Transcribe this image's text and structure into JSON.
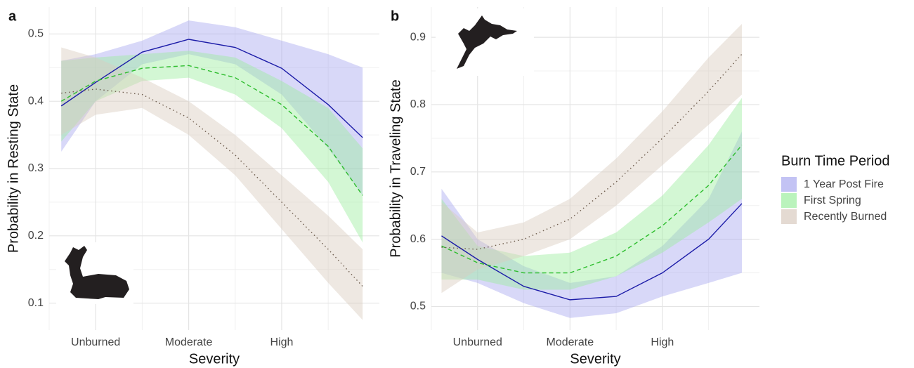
{
  "chart_data": [
    {
      "type": "line",
      "label": "a",
      "xlabel": "Severity",
      "ylabel": "Probability in Resting State",
      "xlim": [
        0.5,
        4.05
      ],
      "ylim": [
        0.06,
        0.54
      ],
      "xticks": [
        {
          "value": 1,
          "label": "Unburned"
        },
        {
          "value": 2,
          "label": "Moderate"
        },
        {
          "value": 3,
          "label": "High"
        }
      ],
      "yticks": [
        0.1,
        0.2,
        0.3,
        0.4,
        0.5
      ],
      "grid": true,
      "legend": {
        "title": "Burn Time Period",
        "position": "right"
      },
      "series": [
        {
          "name": "1 Year Post Fire",
          "color": "#1c1ca8",
          "band_color": "#a9a9f0",
          "linestyle": "solid",
          "x": [
            0.63,
            1,
            1.5,
            2,
            2.5,
            3,
            3.5,
            3.87
          ],
          "values": [
            0.393,
            0.428,
            0.473,
            0.492,
            0.48,
            0.449,
            0.395,
            0.346
          ],
          "lower": [
            0.325,
            0.4,
            0.455,
            0.47,
            0.455,
            0.41,
            0.33,
            0.26
          ],
          "upper": [
            0.46,
            0.47,
            0.49,
            0.52,
            0.51,
            0.49,
            0.47,
            0.45
          ]
        },
        {
          "name": "First Spring",
          "color": "#2dbd2d",
          "band_color": "#9deea0",
          "linestyle": "dashed",
          "x": [
            0.63,
            1,
            1.5,
            2,
            2.5,
            3,
            3.5,
            3.87
          ],
          "values": [
            0.4,
            0.43,
            0.449,
            0.453,
            0.435,
            0.395,
            0.333,
            0.26
          ],
          "lower": [
            0.34,
            0.4,
            0.43,
            0.435,
            0.41,
            0.36,
            0.28,
            0.19
          ],
          "upper": [
            0.46,
            0.465,
            0.47,
            0.475,
            0.465,
            0.43,
            0.39,
            0.33
          ]
        },
        {
          "name": "Recently Burned",
          "color": "#6e5d4e",
          "band_color": "#d9cbbf",
          "linestyle": "dotted",
          "x": [
            0.63,
            1,
            1.5,
            2,
            2.5,
            3,
            3.5,
            3.87
          ],
          "values": [
            0.412,
            0.418,
            0.41,
            0.375,
            0.32,
            0.25,
            0.18,
            0.125
          ],
          "lower": [
            0.35,
            0.38,
            0.39,
            0.35,
            0.29,
            0.21,
            0.13,
            0.075
          ],
          "upper": [
            0.48,
            0.465,
            0.435,
            0.4,
            0.35,
            0.29,
            0.23,
            0.18
          ]
        }
      ]
    },
    {
      "type": "line",
      "label": "b",
      "xlabel": "Severity",
      "ylabel": "Probability in Traveling State",
      "xlim": [
        0.5,
        4.05
      ],
      "ylim": [
        0.465,
        0.945
      ],
      "xticks": [
        {
          "value": 1,
          "label": "Unburned"
        },
        {
          "value": 2,
          "label": "Moderate"
        },
        {
          "value": 3,
          "label": "High"
        }
      ],
      "yticks": [
        0.5,
        0.6,
        0.7,
        0.8,
        0.9
      ],
      "grid": true,
      "series": [
        {
          "name": "1 Year Post Fire",
          "color": "#1c1ca8",
          "band_color": "#a9a9f0",
          "linestyle": "solid",
          "x": [
            0.61,
            1,
            1.5,
            2,
            2.5,
            3,
            3.5,
            3.86
          ],
          "values": [
            0.605,
            0.57,
            0.53,
            0.51,
            0.515,
            0.55,
            0.6,
            0.653
          ],
          "lower": [
            0.55,
            0.535,
            0.505,
            0.483,
            0.49,
            0.515,
            0.535,
            0.55
          ],
          "upper": [
            0.675,
            0.6,
            0.56,
            0.535,
            0.545,
            0.59,
            0.66,
            0.76
          ]
        },
        {
          "name": "First Spring",
          "color": "#2dbd2d",
          "band_color": "#9deea0",
          "linestyle": "dashed",
          "x": [
            0.61,
            1,
            1.5,
            2,
            2.5,
            3,
            3.5,
            3.86
          ],
          "values": [
            0.59,
            0.565,
            0.55,
            0.55,
            0.575,
            0.62,
            0.68,
            0.74
          ],
          "lower": [
            0.54,
            0.54,
            0.525,
            0.525,
            0.545,
            0.58,
            0.625,
            0.66
          ],
          "upper": [
            0.66,
            0.59,
            0.575,
            0.58,
            0.61,
            0.665,
            0.74,
            0.81
          ]
        },
        {
          "name": "Recently Burned",
          "color": "#6e5d4e",
          "band_color": "#d9cbbf",
          "linestyle": "dotted",
          "x": [
            0.61,
            1,
            1.5,
            2,
            2.5,
            3,
            3.5,
            3.86
          ],
          "values": [
            0.588,
            0.585,
            0.6,
            0.63,
            0.685,
            0.75,
            0.82,
            0.875
          ],
          "lower": [
            0.52,
            0.555,
            0.575,
            0.6,
            0.65,
            0.71,
            0.77,
            0.815
          ],
          "upper": [
            0.655,
            0.61,
            0.625,
            0.66,
            0.72,
            0.79,
            0.87,
            0.92
          ]
        }
      ]
    }
  ]
}
